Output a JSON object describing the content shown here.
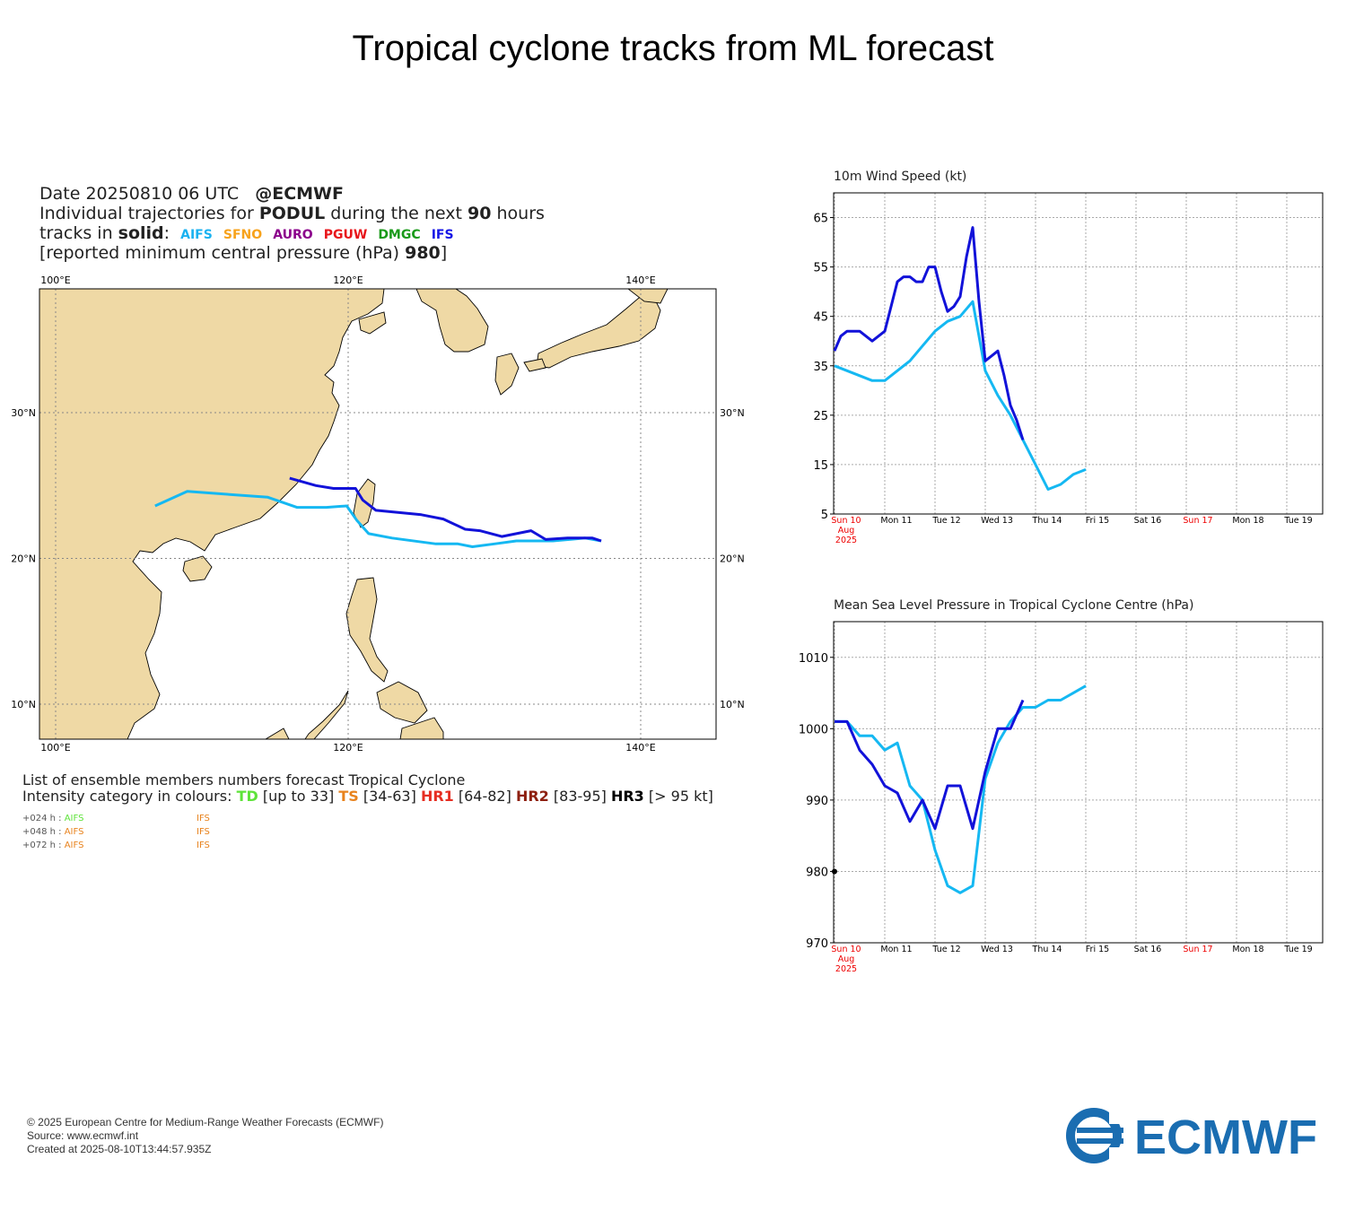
{
  "title": "Tropical cyclone tracks from ML forecast",
  "header": {
    "date_line": "Date 20250810 06 UTC",
    "at_ecmwf": "@ECMWF",
    "traj_prefix": "Individual trajectories for",
    "storm_name": "PODUL",
    "traj_mid": "during the next",
    "hours": "90",
    "traj_suffix": "hours",
    "tracks_prefix": "tracks in",
    "tracks_style": "solid",
    "pressure_prefix": "[reported minimum central pressure (hPa)",
    "pressure_value": "980",
    "pressure_suffix": "]"
  },
  "models": [
    {
      "name": "AIFS",
      "color": "#1ab2f0"
    },
    {
      "name": "SFNO",
      "color": "#f7a21b"
    },
    {
      "name": "AURO",
      "color": "#8b008b"
    },
    {
      "name": "PGUW",
      "color": "#e8161b"
    },
    {
      "name": "DMGC",
      "color": "#1a9a1a"
    },
    {
      "name": "IFS",
      "color": "#1515e6"
    }
  ],
  "map": {
    "lon_ticks": [
      "100°E",
      "120°E",
      "140°E"
    ],
    "lat_ticks": [
      "30°N",
      "20°N",
      "10°N"
    ],
    "land_color": "#efd9a5",
    "tracks": [
      {
        "model": "AIFS",
        "color": "#15b8f2",
        "points": [
          [
            106.8,
            23.6
          ],
          [
            109.0,
            24.6
          ],
          [
            114.5,
            24.2
          ],
          [
            116.5,
            23.5
          ],
          [
            118.5,
            23.5
          ],
          [
            119.9,
            23.6
          ],
          [
            120.6,
            22.6
          ],
          [
            121.4,
            21.7
          ],
          [
            123.0,
            21.4
          ],
          [
            126.0,
            21.0
          ],
          [
            127.5,
            21.0
          ],
          [
            128.5,
            20.8
          ],
          [
            130.0,
            21.0
          ],
          [
            131.5,
            21.2
          ],
          [
            134.0,
            21.2
          ],
          [
            136.2,
            21.4
          ],
          [
            137.3,
            21.2
          ]
        ]
      },
      {
        "model": "IFS",
        "color": "#1212d9",
        "points": [
          [
            116.0,
            25.5
          ],
          [
            117.8,
            25.0
          ],
          [
            119.0,
            24.8
          ],
          [
            120.5,
            24.8
          ],
          [
            121.0,
            24.0
          ],
          [
            121.9,
            23.3
          ],
          [
            125.0,
            23.0
          ],
          [
            126.5,
            22.7
          ],
          [
            128.0,
            22.0
          ],
          [
            129.0,
            21.9
          ],
          [
            130.5,
            21.5
          ],
          [
            132.5,
            21.9
          ],
          [
            133.5,
            21.3
          ],
          [
            135.0,
            21.4
          ],
          [
            136.7,
            21.4
          ],
          [
            137.3,
            21.2
          ]
        ]
      }
    ]
  },
  "legend": {
    "line1": "List of ensemble members numbers forecast Tropical Cyclone",
    "line2_prefix": "Intensity category in colours:",
    "categories": [
      {
        "code": "TD",
        "range": "[up to 33]",
        "color": "#5ee33a"
      },
      {
        "code": "TS",
        "range": "[34-63]",
        "color": "#e8831e"
      },
      {
        "code": "HR1",
        "range": "[64-82]",
        "color": "#e62e22"
      },
      {
        "code": "HR2",
        "range": "[83-95]",
        "color": "#8e2010"
      },
      {
        "code": "HR3",
        "range": "[> 95 kt]",
        "color": "#000000"
      }
    ],
    "rows": [
      {
        "lead": "+024 h :",
        "aifs": "AIFS",
        "aifs_color": "#5ee33a",
        "ifs": "IFS",
        "ifs_color": "#e8831e"
      },
      {
        "lead": "+048 h :",
        "aifs": "AIFS",
        "aifs_color": "#e8831e",
        "ifs": "IFS",
        "ifs_color": "#e8831e"
      },
      {
        "lead": "+072 h :",
        "aifs": "AIFS",
        "aifs_color": "#e8831e",
        "ifs": "IFS",
        "ifs_color": "#e8831e"
      }
    ]
  },
  "chart_data": [
    {
      "type": "line",
      "title": "10m Wind Speed (kt)",
      "xlabel": "",
      "ylabel": "",
      "ylim": [
        5,
        70
      ],
      "yticks": [
        5,
        15,
        25,
        35,
        45,
        55,
        65
      ],
      "x_tick_labels": [
        {
          "label": "Sun 10",
          "red": true
        },
        {
          "label": "Mon 11",
          "red": false
        },
        {
          "label": "Tue 12",
          "red": false
        },
        {
          "label": "Wed 13",
          "red": false
        },
        {
          "label": "Thu 14",
          "red": false
        },
        {
          "label": "Fri 15",
          "red": false
        },
        {
          "label": "Sat 16",
          "red": false
        },
        {
          "label": "Sun 17",
          "red": true
        },
        {
          "label": "Mon 18",
          "red": false
        },
        {
          "label": "Tue 19",
          "red": false
        }
      ],
      "x_sub1": "Aug",
      "x_sub2": "2025",
      "x_unit": "hours since 2025-08-10 00 UTC",
      "grid": true,
      "series": [
        {
          "model": "AIFS",
          "color": "#15b8f2",
          "x": [
            0,
            6,
            12,
            18,
            24,
            30,
            36,
            42,
            48,
            54,
            60,
            66,
            72,
            78,
            84,
            90,
            96,
            102,
            108,
            114,
            120
          ],
          "y": [
            35,
            34,
            33,
            32,
            32,
            34,
            36,
            39,
            42,
            44,
            45,
            48,
            34,
            29,
            25,
            20,
            15,
            10,
            11,
            13,
            14
          ]
        },
        {
          "model": "IFS",
          "color": "#1212d9",
          "x": [
            0,
            3,
            6,
            9,
            12,
            15,
            18,
            21,
            24,
            27,
            30,
            33,
            36,
            39,
            42,
            45,
            48,
            51,
            54,
            57,
            60,
            63,
            66,
            69,
            72,
            75,
            78,
            81,
            84,
            87,
            90
          ],
          "y": [
            38,
            41,
            42,
            42,
            42,
            41,
            40,
            41,
            42,
            47,
            52,
            53,
            53,
            52,
            52,
            55,
            55,
            50,
            46,
            47,
            49,
            57,
            63,
            48,
            36,
            37,
            38,
            33,
            27,
            24,
            20
          ]
        }
      ]
    },
    {
      "type": "line",
      "title": "Mean Sea Level Pressure in Tropical Cyclone Centre (hPa)",
      "xlabel": "",
      "ylabel": "",
      "ylim": [
        970,
        1015
      ],
      "yticks": [
        970,
        980,
        990,
        1000,
        1010
      ],
      "x_unit": "hours since 2025-08-10 00 UTC",
      "grid": true,
      "reported_point": {
        "x": 0,
        "y": 980
      },
      "series": [
        {
          "model": "AIFS",
          "color": "#15b8f2",
          "x": [
            0,
            6,
            12,
            18,
            24,
            30,
            36,
            42,
            48,
            54,
            60,
            66,
            72,
            78,
            84,
            90,
            96,
            102,
            108,
            114,
            120
          ],
          "y": [
            1001,
            1001,
            999,
            999,
            997,
            998,
            992,
            990,
            983,
            978,
            977,
            978,
            993,
            998,
            1001,
            1003,
            1003,
            1004,
            1004,
            1005,
            1006
          ]
        },
        {
          "model": "IFS",
          "color": "#1212d9",
          "x": [
            0,
            6,
            12,
            18,
            24,
            30,
            36,
            42,
            48,
            54,
            60,
            66,
            72,
            78,
            84,
            90
          ],
          "y": [
            1001,
            1001,
            997,
            995,
            992,
            991,
            987,
            990,
            986,
            992,
            992,
            986,
            994,
            1000,
            1000,
            1004
          ]
        }
      ]
    }
  ],
  "footer": {
    "copyright": "© 2025 European Centre for Medium-Range Weather Forecasts (ECMWF)",
    "source": "Source: www.ecmwf.int",
    "created": "Created at 2025-08-10T13:44:57.935Z",
    "logo_text": "ECMWF",
    "logo_color": "#1a6db1"
  }
}
